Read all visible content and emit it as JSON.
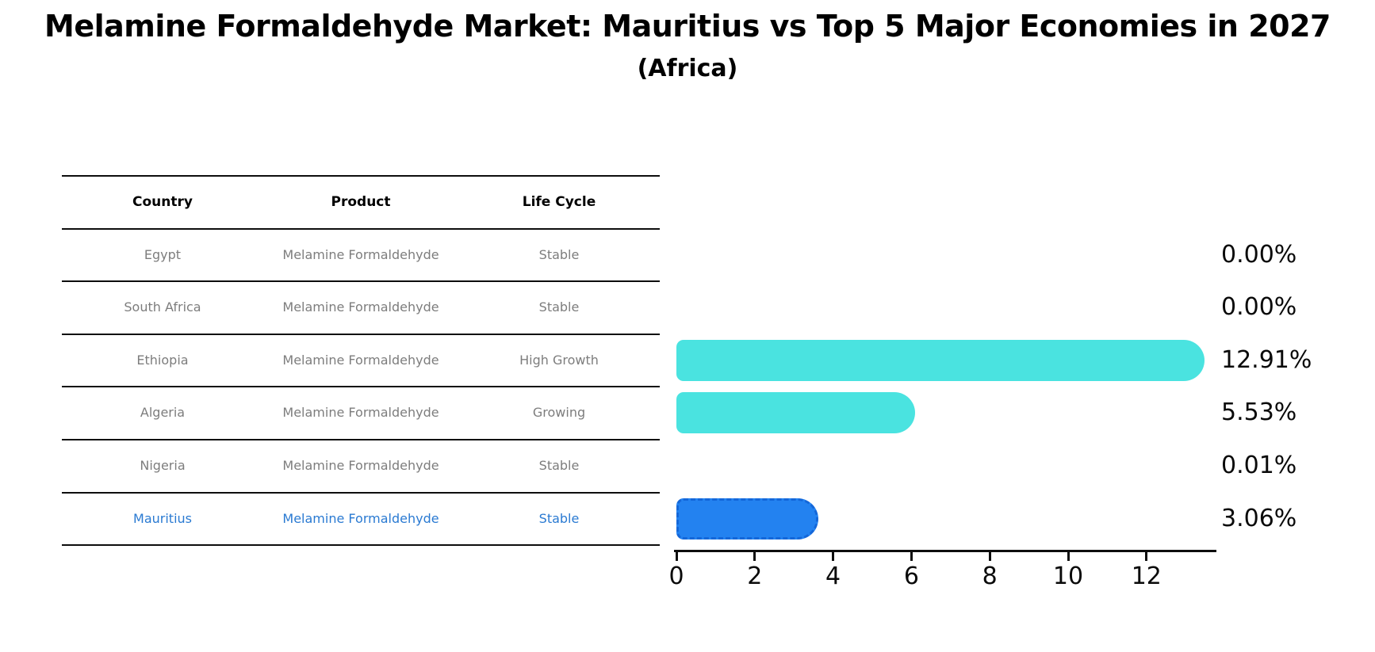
{
  "title": "Melamine Formaldehyde Market: Mauritius vs Top 5 Major Economies in 2027",
  "subtitle": "(Africa)",
  "table": {
    "columns": [
      "Country",
      "Product",
      "Life Cycle"
    ],
    "rows": [
      {
        "country": "Egypt",
        "product": "Melamine Formaldehyde",
        "life_cycle": "Stable"
      },
      {
        "country": "South Africa",
        "product": "Melamine Formaldehyde",
        "life_cycle": "Stable"
      },
      {
        "country": "Ethiopia",
        "product": "Melamine Formaldehyde",
        "life_cycle": "High Growth"
      },
      {
        "country": "Algeria",
        "product": "Melamine Formaldehyde",
        "life_cycle": "Growing"
      },
      {
        "country": "Nigeria",
        "product": "Melamine Formaldehyde",
        "life_cycle": "Stable"
      },
      {
        "country": "Mauritius",
        "product": "Melamine Formaldehyde",
        "life_cycle": "Stable"
      }
    ],
    "highlight_row": "Mauritius"
  },
  "chart_data": {
    "type": "bar",
    "orientation": "horizontal",
    "title": "Melamine Formaldehyde Market: Mauritius vs Top 5 Major Economies in 2027 (Africa)",
    "categories": [
      "Egypt",
      "South Africa",
      "Ethiopia",
      "Algeria",
      "Nigeria",
      "Mauritius"
    ],
    "values": [
      0.0,
      0.0,
      12.91,
      5.53,
      0.01,
      3.06
    ],
    "value_labels": [
      "0.00%",
      "0.00%",
      "12.91%",
      "5.53%",
      "0.01%",
      "3.06%"
    ],
    "x_ticks": [
      "0",
      "2",
      "4",
      "6",
      "8",
      "10",
      "12"
    ],
    "xlim": [
      0,
      13.7
    ],
    "grid": false,
    "legend_position": "none",
    "highlight_index": 5,
    "colors": {
      "bar": "#4ae3e0",
      "highlight_bar": "#2382f0",
      "highlight_border": "#1467d9",
      "highlight_text": "#2a7ad2",
      "row_text": "#7d7d7d",
      "axis": "#0d0d0d"
    }
  }
}
